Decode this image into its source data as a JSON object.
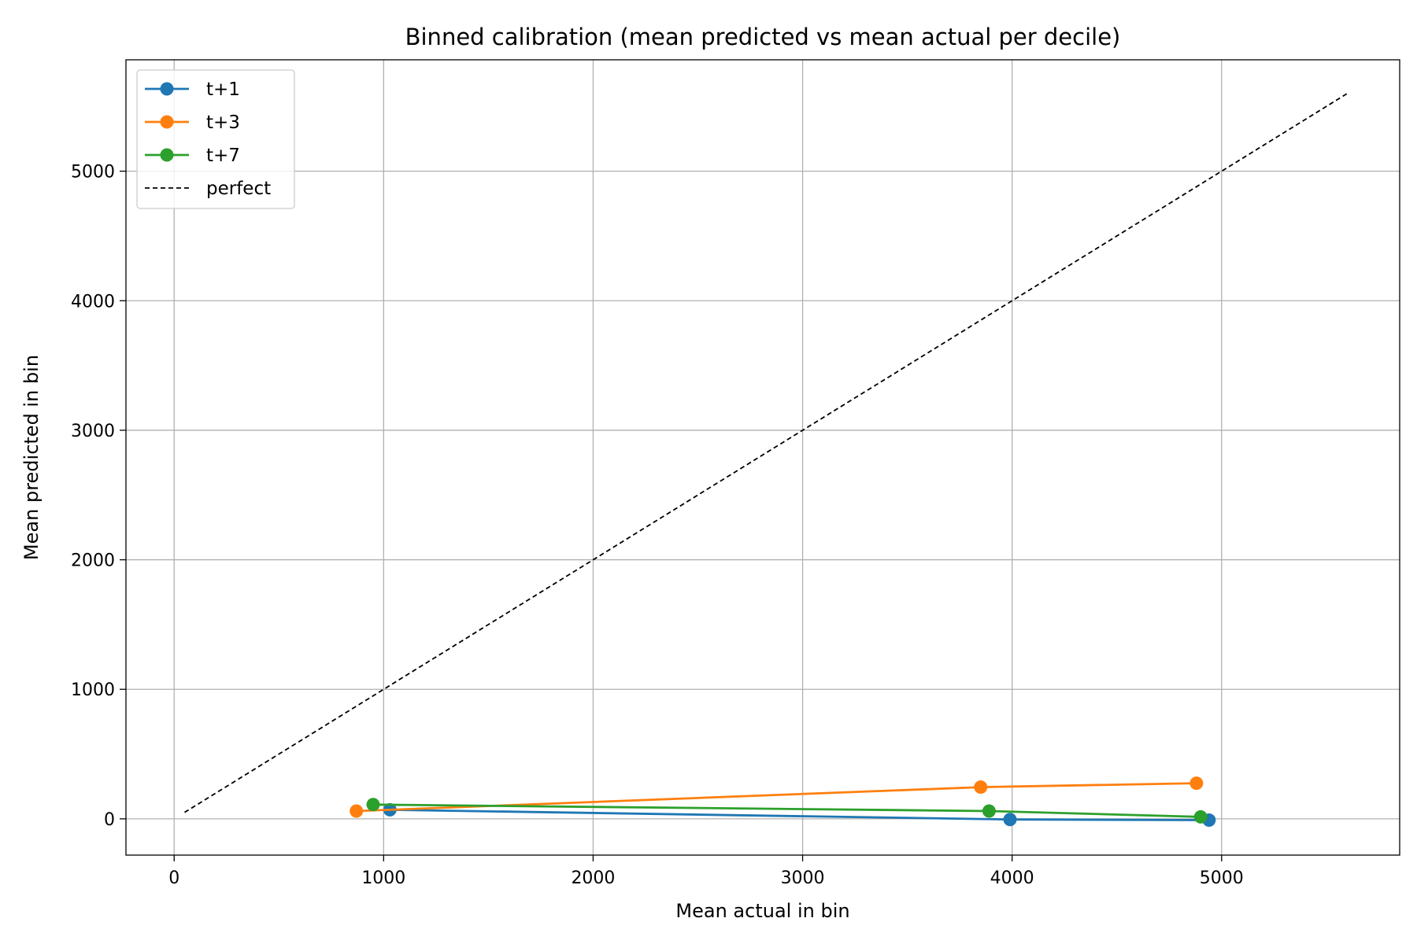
{
  "chart_data": {
    "type": "line",
    "title": "Binned calibration (mean predicted vs mean actual per decile)",
    "xlabel": "Mean actual in bin",
    "ylabel": "Mean predicted in bin",
    "xlim": [
      -230,
      5850
    ],
    "ylim": [
      -280,
      5860
    ],
    "xticks": [
      0,
      1000,
      2000,
      3000,
      4000,
      5000
    ],
    "yticks": [
      0,
      1000,
      2000,
      3000,
      4000,
      5000
    ],
    "grid": true,
    "legend_position": "upper left",
    "series": [
      {
        "name": "t+1",
        "color": "#1f77b4",
        "style": "solid-marker",
        "x": [
          1030,
          3990,
          4940
        ],
        "y": [
          70,
          -5,
          -10
        ]
      },
      {
        "name": "t+3",
        "color": "#ff7f0e",
        "style": "solid-marker",
        "x": [
          870,
          3850,
          4880
        ],
        "y": [
          60,
          245,
          275
        ]
      },
      {
        "name": "t+7",
        "color": "#2ca02c",
        "style": "solid-marker",
        "x": [
          950,
          3890,
          4900
        ],
        "y": [
          110,
          60,
          15
        ]
      },
      {
        "name": "perfect",
        "color": "#000000",
        "style": "dashed",
        "x": [
          50,
          5600
        ],
        "y": [
          50,
          5600
        ]
      }
    ]
  }
}
